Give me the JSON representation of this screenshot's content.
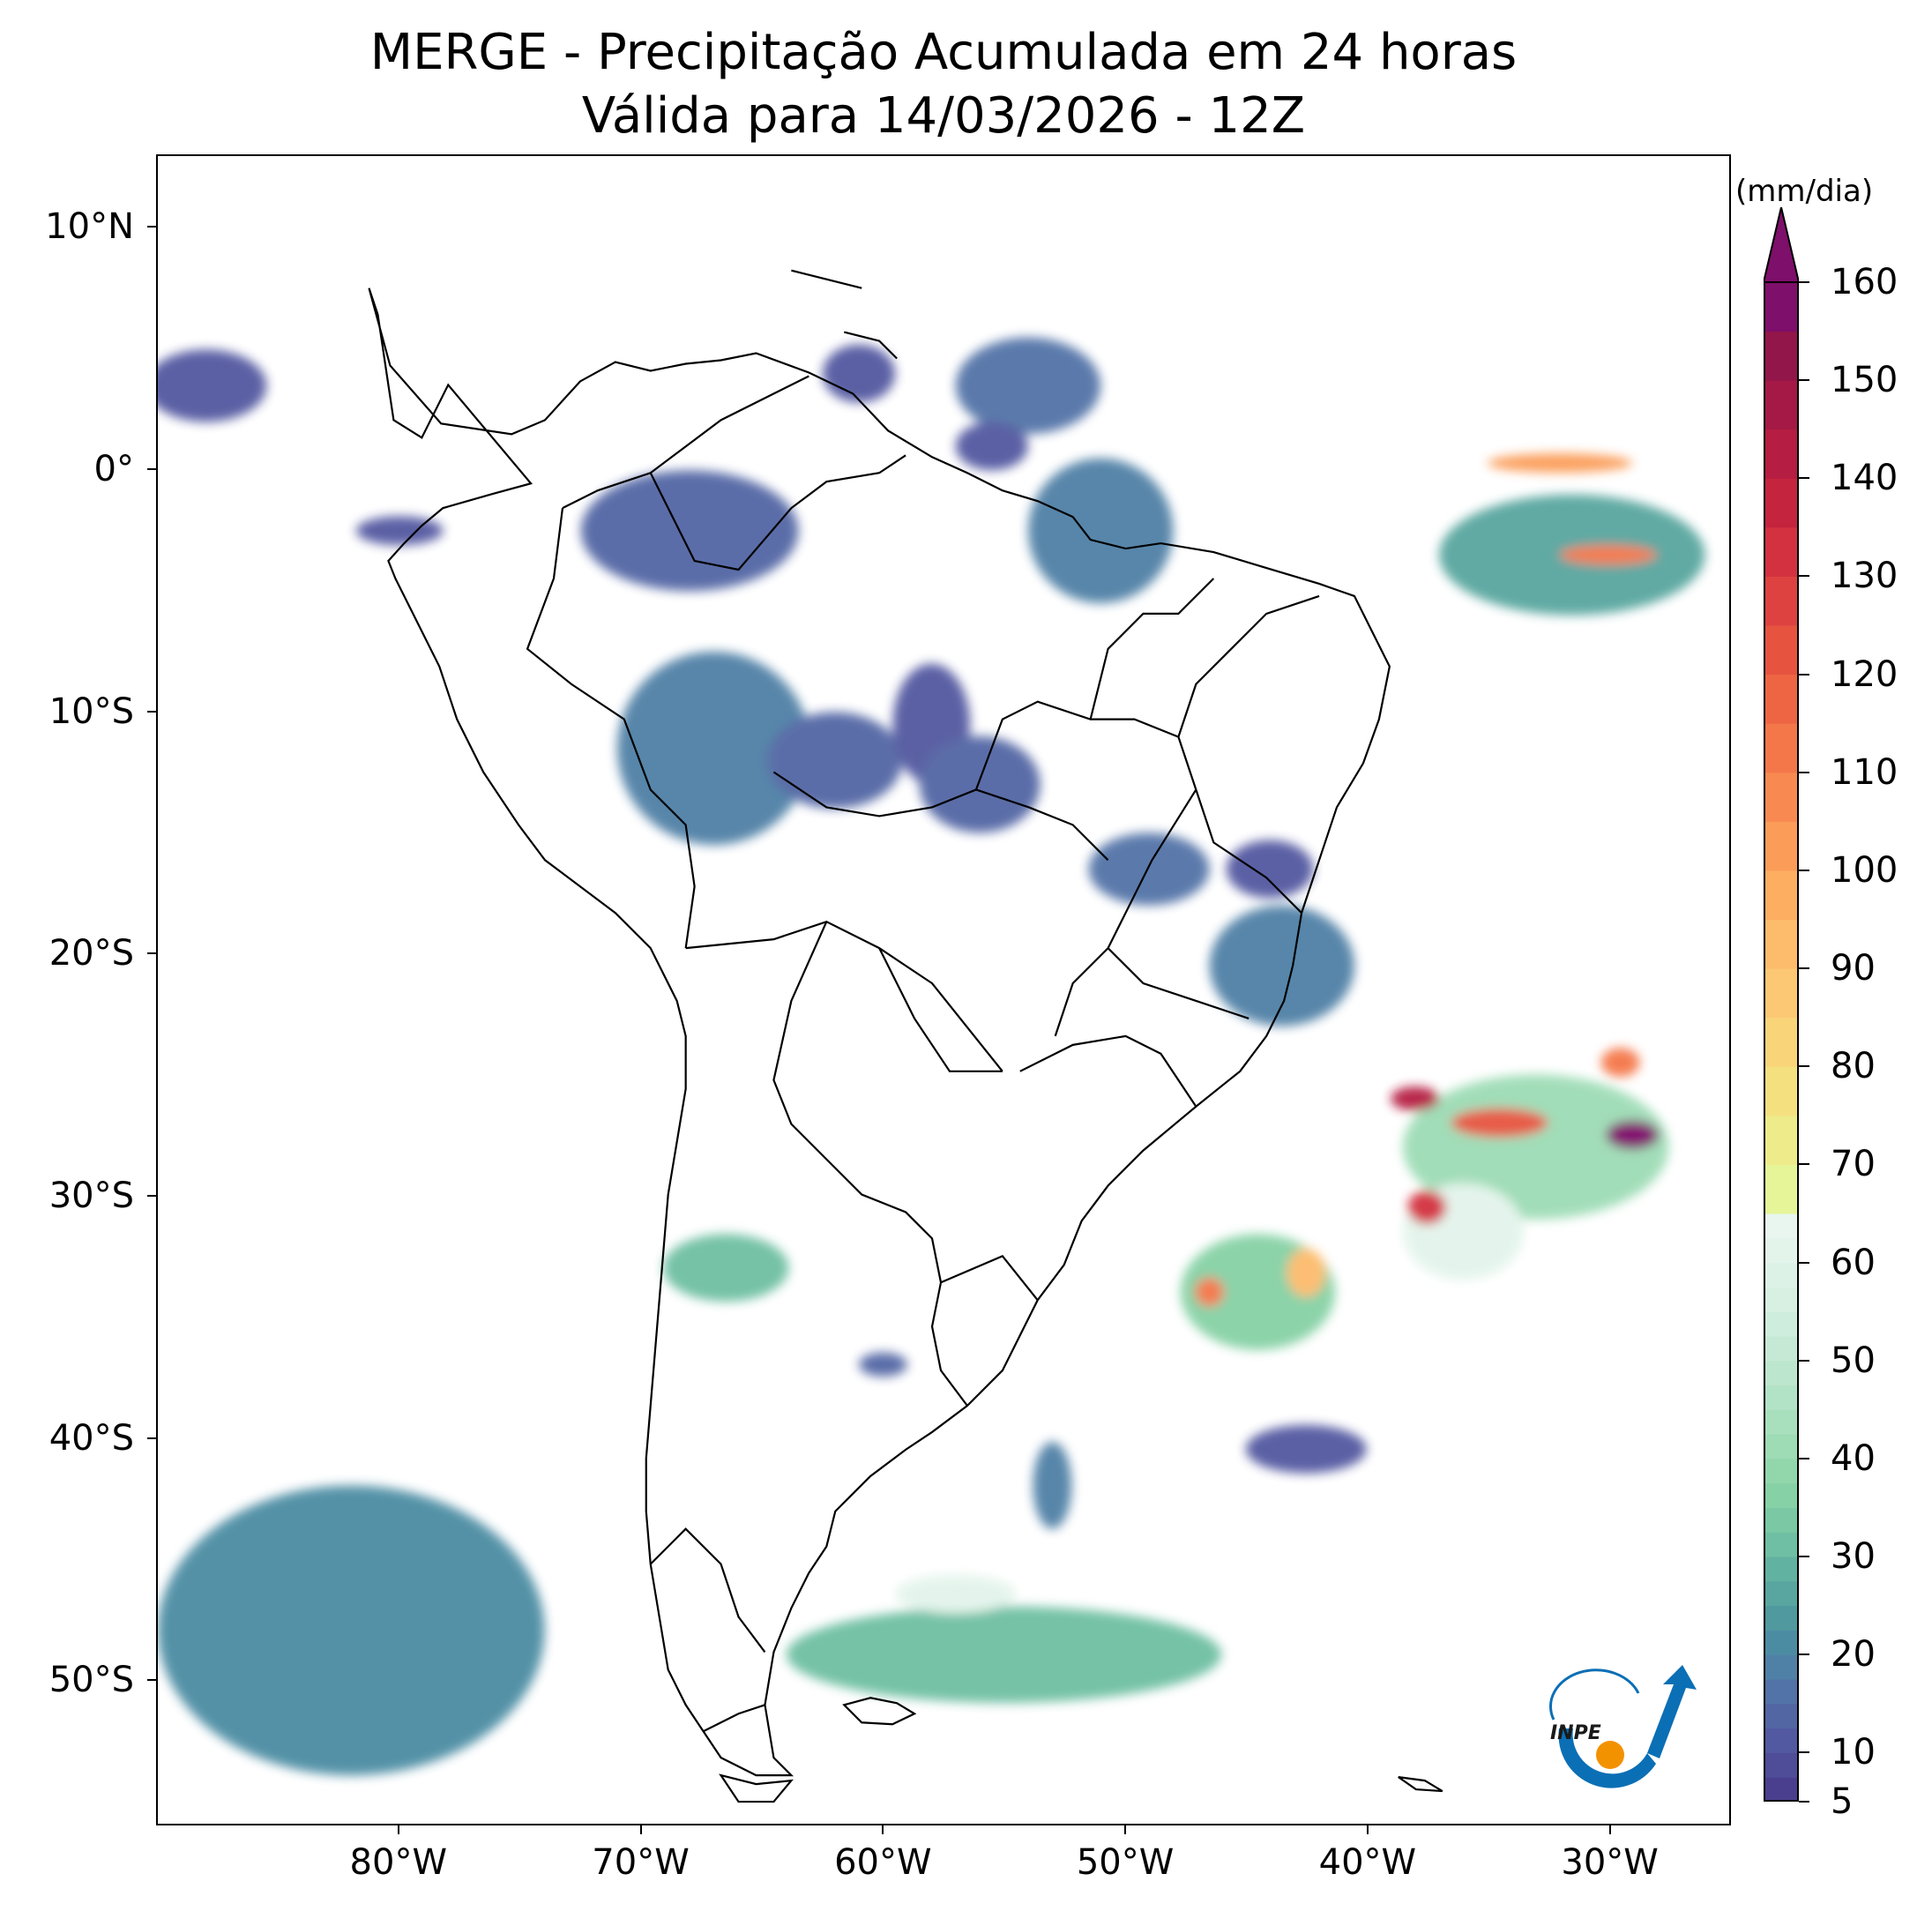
{
  "title_line1": "MERGE - Precipitação Acumulada em 24 horas",
  "title_line2": "Válida para 14/03/2026 - 12Z",
  "map": {
    "extent": {
      "lon_min": -90,
      "lon_max": -25,
      "lat_min": -56,
      "lat_max": 13
    },
    "lat_ticks": [
      {
        "value": 10,
        "label": "10°N"
      },
      {
        "value": 0,
        "label": "0°"
      },
      {
        "value": -10,
        "label": "10°S"
      },
      {
        "value": -20,
        "label": "20°S"
      },
      {
        "value": -30,
        "label": "30°S"
      },
      {
        "value": -40,
        "label": "40°S"
      },
      {
        "value": -50,
        "label": "50°S"
      }
    ],
    "lon_ticks": [
      {
        "value": -80,
        "label": "80°W"
      },
      {
        "value": -70,
        "label": "70°W"
      },
      {
        "value": -60,
        "label": "60°W"
      },
      {
        "value": -50,
        "label": "50°W"
      },
      {
        "value": -40,
        "label": "40°W"
      },
      {
        "value": -30,
        "label": "30°W"
      }
    ],
    "precip_cells": [
      {
        "lon": -68,
        "lat": -2.5,
        "rlon": 4.5,
        "rlat": 2.5,
        "mm": 14
      },
      {
        "lon": -67,
        "lat": -11.5,
        "rlon": 4,
        "rlat": 4,
        "mm": 18
      },
      {
        "lon": -62,
        "lat": -12,
        "rlon": 2.8,
        "rlat": 2,
        "mm": 14
      },
      {
        "lon": -58,
        "lat": -10.5,
        "rlon": 1.6,
        "rlat": 2.5,
        "mm": 12
      },
      {
        "lon": -56,
        "lat": -13,
        "rlon": 2.5,
        "rlat": 2,
        "mm": 14
      },
      {
        "lon": -51,
        "lat": -2.5,
        "rlon": 3,
        "rlat": 3,
        "mm": 18
      },
      {
        "lon": -54,
        "lat": 3.5,
        "rlon": 3,
        "rlat": 2,
        "mm": 16
      },
      {
        "lon": -55.5,
        "lat": 1,
        "rlon": 1.5,
        "rlat": 1,
        "mm": 12
      },
      {
        "lon": -61,
        "lat": 4,
        "rlon": 1.5,
        "rlat": 1.2,
        "mm": 12
      },
      {
        "lon": -49,
        "lat": -16.5,
        "rlon": 2.5,
        "rlat": 1.5,
        "mm": 16
      },
      {
        "lon": -43.5,
        "lat": -20.5,
        "rlon": 3,
        "rlat": 2.5,
        "mm": 18
      },
      {
        "lon": -44,
        "lat": -16.5,
        "rlon": 1.8,
        "rlat": 1.2,
        "mm": 12
      },
      {
        "lon": -33,
        "lat": -28,
        "rlon": 5.5,
        "rlat": 3,
        "mm": 40
      },
      {
        "lon": -36,
        "lat": -31.5,
        "rlon": 2.5,
        "rlat": 2,
        "mm": 60
      },
      {
        "lon": -44.5,
        "lat": -34,
        "rlon": 3.2,
        "rlat": 2.4,
        "mm": 35
      },
      {
        "lon": -46.5,
        "lat": -34,
        "rlon": 0.6,
        "rlat": 0.6,
        "mm": 110
      },
      {
        "lon": -42.5,
        "lat": -33.2,
        "rlon": 0.8,
        "rlat": 1,
        "mm": 90
      },
      {
        "lon": -37.5,
        "lat": -30.5,
        "rlon": 0.8,
        "rlat": 0.7,
        "mm": 130
      },
      {
        "lon": -34.5,
        "lat": -27,
        "rlon": 2,
        "rlat": 0.6,
        "mm": 120
      },
      {
        "lon": -38,
        "lat": -26,
        "rlon": 1,
        "rlat": 0.5,
        "mm": 140
      },
      {
        "lon": -29,
        "lat": -27.5,
        "rlon": 1.1,
        "rlat": 0.6,
        "mm": 165
      },
      {
        "lon": -29.5,
        "lat": -24.5,
        "rlon": 0.8,
        "rlat": 0.6,
        "mm": 110
      },
      {
        "lon": -31.5,
        "lat": -3.5,
        "rlon": 5.5,
        "rlat": 2.5,
        "mm": 25
      },
      {
        "lon": -30,
        "lat": -3.5,
        "rlon": 2,
        "rlat": 0.4,
        "mm": 110
      },
      {
        "lon": -32,
        "lat": 0.3,
        "rlon": 3,
        "rlat": 0.4,
        "mm": 100
      },
      {
        "lon": -66.5,
        "lat": -33,
        "rlon": 2.6,
        "rlat": 1.4,
        "mm": 30
      },
      {
        "lon": -60,
        "lat": -37,
        "rlon": 1,
        "rlat": 0.5,
        "mm": 14
      },
      {
        "lon": -82,
        "lat": -48,
        "rlon": 8,
        "rlat": 6,
        "mm": 22
      },
      {
        "lon": -55,
        "lat": -49,
        "rlon": 9,
        "rlat": 2,
        "mm": 30
      },
      {
        "lon": -57,
        "lat": -46.5,
        "rlon": 2.5,
        "rlat": 0.8,
        "mm": 60
      },
      {
        "lon": -53,
        "lat": -42,
        "rlon": 0.8,
        "rlat": 1.8,
        "mm": 18
      },
      {
        "lon": -88,
        "lat": 3.5,
        "rlon": 2.5,
        "rlat": 1.5,
        "mm": 12
      },
      {
        "lon": -80,
        "lat": -2.5,
        "rlon": 1.8,
        "rlat": 0.6,
        "mm": 10
      },
      {
        "lon": -42.5,
        "lat": -40.5,
        "rlon": 2.5,
        "rlat": 1,
        "mm": 10
      }
    ]
  },
  "colorbar": {
    "unit": "(mm/dia)",
    "min": 5,
    "max": 160,
    "bounds": [
      5,
      7.5,
      10,
      12.5,
      15,
      17.5,
      20,
      22.5,
      25,
      27.5,
      30,
      32.5,
      35,
      37.5,
      40,
      42.5,
      45,
      47.5,
      50,
      52.5,
      55,
      57.5,
      60,
      62.5,
      65,
      70,
      75,
      80,
      85,
      90,
      95,
      100,
      105,
      110,
      115,
      120,
      125,
      130,
      135,
      140,
      145,
      150,
      155,
      160
    ],
    "colors": [
      "#4a3f8f",
      "#4f4c98",
      "#5259a0",
      "#5266a4",
      "#5273a7",
      "#4f80a6",
      "#4c8ca3",
      "#4f999f",
      "#58a69f",
      "#62b2a1",
      "#6ebfa3",
      "#7ac9a4",
      "#86d1a5",
      "#92d7ac",
      "#9ddcb5",
      "#a8e0be",
      "#b3e3c6",
      "#bde6ce",
      "#c6e9d5",
      "#cfeddc",
      "#d7f0e2",
      "#ddf2e7",
      "#e3f4eb",
      "#e8f6ef",
      "#e6f598",
      "#eeeb8a",
      "#f5e080",
      "#f9d479",
      "#fcc874",
      "#fdbb6c",
      "#fdae61",
      "#fb9c59",
      "#f88a51",
      "#f4774a",
      "#ee6544",
      "#e65440",
      "#dd4240",
      "#d3313f",
      "#c5243f",
      "#b51d42",
      "#a41945",
      "#921649",
      "#7e0f6a"
    ],
    "extend_color": "#7e0f6a",
    "tick_values": [
      5,
      10,
      20,
      30,
      40,
      50,
      60,
      70,
      80,
      90,
      100,
      110,
      120,
      130,
      140,
      150,
      160
    ],
    "tick_labels": [
      "5",
      "10",
      "20",
      "30",
      "40",
      "50",
      "60",
      "70",
      "80",
      "90",
      "100",
      "110",
      "120",
      "130",
      "140",
      "150",
      "160"
    ]
  },
  "logo": {
    "text": "INPE",
    "colors": {
      "blue": "#0b6fb5",
      "orange": "#f39200"
    }
  }
}
